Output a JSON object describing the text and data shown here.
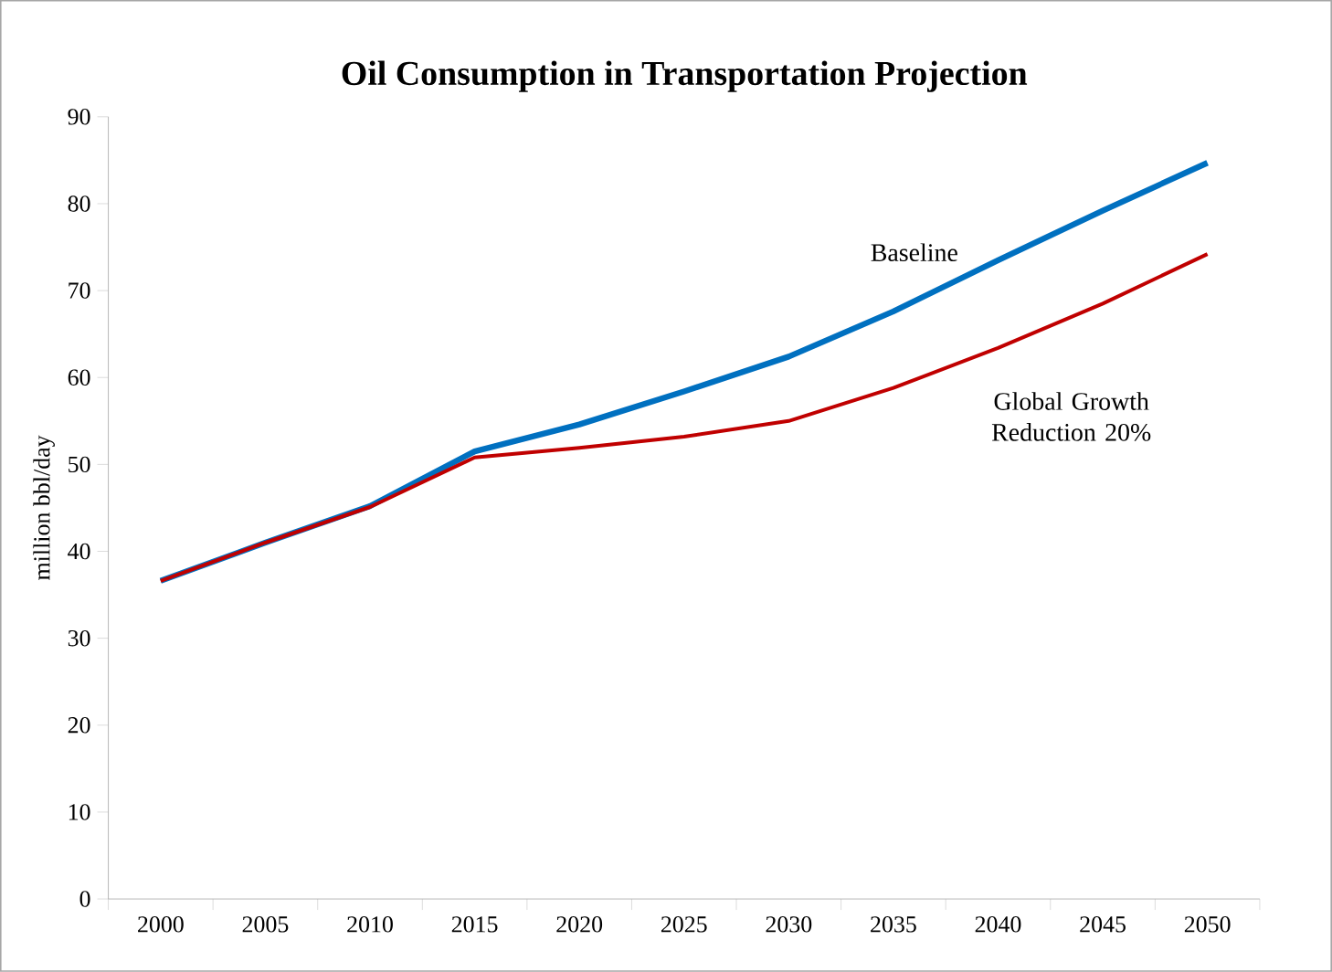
{
  "chart_data": {
    "type": "line",
    "title": "Oil Consumption in Transportation Projection",
    "ylabel": "million bbl/day",
    "categories": [
      "2000",
      "2005",
      "2010",
      "2015",
      "2020",
      "2025",
      "2030",
      "2035",
      "2040",
      "2045",
      "2050"
    ],
    "series": [
      {
        "name": "Baseline",
        "color": "#0070c0",
        "values": [
          36.6,
          41,
          45.2,
          51.5,
          54.6,
          58.4,
          62.4,
          67.6,
          73.5,
          79.2,
          84.7
        ]
      },
      {
        "name": "Global Growth Reduction 20%",
        "color": "#c00000",
        "values": [
          36.6,
          41,
          45.1,
          50.8,
          51.9,
          53.2,
          55,
          58.8,
          63.4,
          68.5,
          74.2
        ]
      }
    ],
    "ylim": [
      0,
      90
    ],
    "yticks": [
      0,
      10,
      20,
      30,
      40,
      50,
      60,
      70,
      80,
      90
    ],
    "grid": false,
    "legend": false,
    "marker": "none",
    "line_style": "solid"
  }
}
